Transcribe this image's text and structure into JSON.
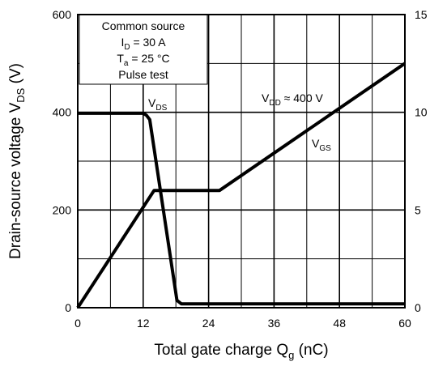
{
  "chart_data": {
    "type": "line",
    "xlabel": {
      "main": "Total gate charge  Q",
      "sub": "g",
      "unit": "  (nC)"
    },
    "ylabel_left": {
      "main": "Drain-source voltage  V",
      "sub": "DS",
      "unit": "  (V)"
    },
    "xlim": [
      0,
      60
    ],
    "ylim_left": [
      0,
      600
    ],
    "ylim_right": [
      0,
      15
    ],
    "x_ticks": [
      "0",
      "12",
      "24",
      "36",
      "48",
      "60"
    ],
    "y_left_ticks": [
      "0",
      "200",
      "400",
      "600"
    ],
    "y_right_ticks": [
      "0",
      "5",
      "10",
      "15"
    ],
    "grid": true,
    "conditions_box": [
      {
        "text": "Common source"
      },
      {
        "text": "I",
        "sub": "D",
        "rest": " = 30 A"
      },
      {
        "text": "T",
        "sub": "a",
        "rest": " = 25 °C"
      },
      {
        "text": "Pulse test"
      }
    ],
    "annotations": {
      "vds": {
        "text": "V",
        "sub": "DS"
      },
      "vdd": {
        "text": "V",
        "sub": "DD",
        "rest": " ≈ 400 V"
      },
      "vgs": {
        "text": "V",
        "sub": "GS"
      }
    },
    "series": [
      {
        "name": "VDS",
        "axis": "left",
        "x": [
          0,
          12,
          12.6,
          13.2,
          18.2,
          19,
          60
        ],
        "y": [
          398,
          398,
          394,
          385,
          15,
          8,
          8
        ]
      },
      {
        "name": "VGS",
        "axis": "right",
        "x": [
          0,
          14,
          26,
          60
        ],
        "y": [
          0,
          6,
          6,
          12.5
        ]
      }
    ]
  }
}
